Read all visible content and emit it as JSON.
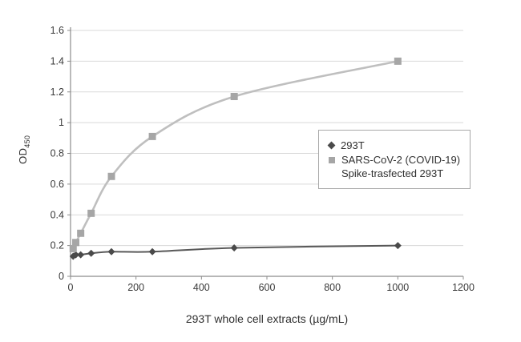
{
  "chart_data": {
    "type": "scatter",
    "title": "",
    "xlabel": "293T whole cell extracts (µg/mL)",
    "ylabel_main": "OD",
    "ylabel_sub": "450",
    "xlim": [
      0,
      1200
    ],
    "ylim": [
      0,
      1.6
    ],
    "xticks": [
      0,
      200,
      400,
      600,
      800,
      1000,
      1200
    ],
    "yticks": [
      0,
      0.2,
      0.4,
      0.6,
      0.8,
      1,
      1.2,
      1.4,
      1.6
    ],
    "grid": "horizontal",
    "x": [
      8,
      16,
      31,
      63,
      125,
      250,
      500,
      1000
    ],
    "series": [
      {
        "name": "293T",
        "marker": "diamond",
        "marker_color": "#4a4a4a",
        "line_color": "#595959",
        "values": [
          0.13,
          0.14,
          0.14,
          0.15,
          0.16,
          0.16,
          0.185,
          0.2
        ]
      },
      {
        "name": "SARS-CoV-2 (COVID-19) Spike-trasfected 293T",
        "marker": "square",
        "marker_color": "#a6a6a6",
        "line_color": "#bfbfbf",
        "values": [
          0.18,
          0.22,
          0.28,
          0.41,
          0.65,
          0.91,
          1.17,
          1.4
        ]
      }
    ],
    "legend": {
      "position": "middle-right",
      "entries": [
        {
          "marker": "diamond",
          "color": "#4a4a4a",
          "lines": [
            "293T"
          ]
        },
        {
          "marker": "square",
          "color": "#a6a6a6",
          "lines": [
            "SARS-CoV-2 (COVID-19)",
            "Spike-trasfected 293T"
          ]
        }
      ]
    },
    "colors": {
      "grid": "#d9d9d9",
      "axis": "#8c8c8c",
      "tick_text": "#3a3a3a"
    }
  }
}
